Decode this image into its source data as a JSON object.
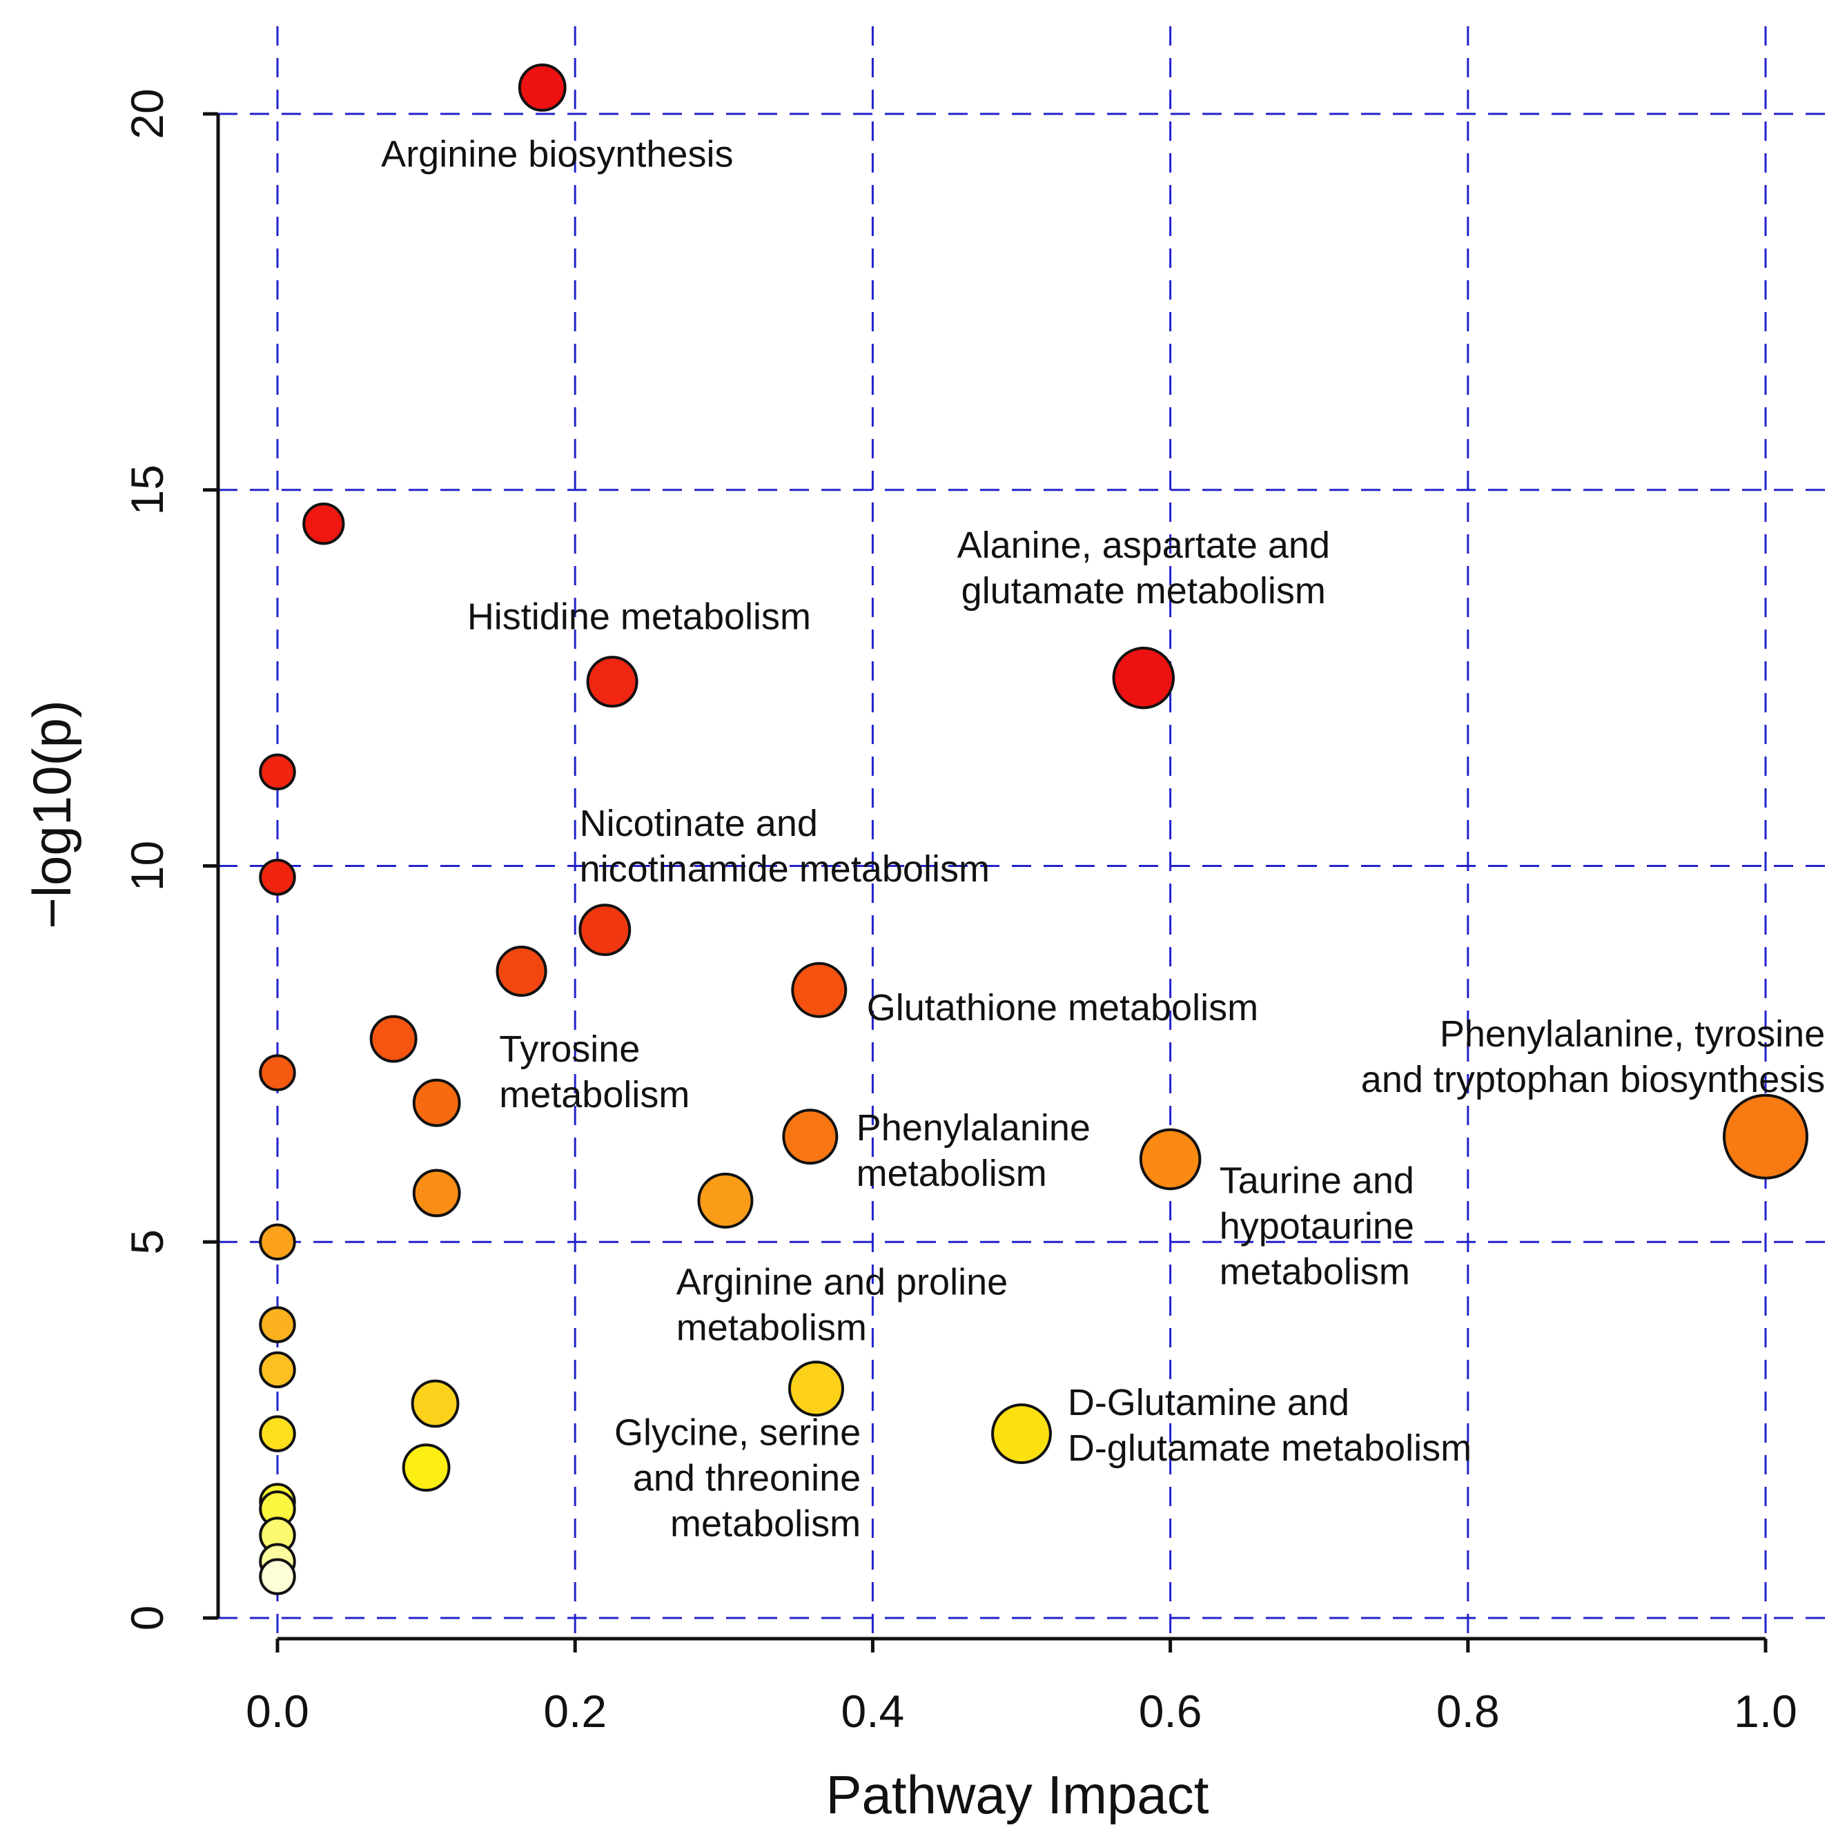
{
  "chart_data": {
    "type": "scatter",
    "title": "",
    "xlabel": "Pathway Impact",
    "ylabel": "−log10(p)",
    "xlim": [
      0,
      1.0
    ],
    "ylim": [
      0,
      20
    ],
    "grid": true,
    "x_ticks": [
      "0.0",
      "0.2",
      "0.4",
      "0.6",
      "0.8",
      "1.0"
    ],
    "x_tick_values": [
      0,
      0.2,
      0.4,
      0.6,
      0.8,
      1.0
    ],
    "y_ticks": [
      "0",
      "5",
      "10",
      "15",
      "20"
    ],
    "y_tick_values": [
      0,
      5,
      10,
      15,
      20
    ],
    "points": [
      {
        "x": 0.178,
        "y": 20.35,
        "size": 0.37,
        "color": "#ee1111"
      },
      {
        "x": 0.031,
        "y": 14.55,
        "size": 0.27,
        "color": "#ee1810"
      },
      {
        "x": 0.225,
        "y": 12.45,
        "size": 0.43,
        "color": "#f02612"
      },
      {
        "x": 0.582,
        "y": 12.5,
        "size": 0.61,
        "color": "#ee1111"
      },
      {
        "x": 0.0,
        "y": 11.25,
        "size": 0.18,
        "color": "#f0240f"
      },
      {
        "x": 0.0,
        "y": 9.85,
        "size": 0.18,
        "color": "#f0240f"
      },
      {
        "x": 0.22,
        "y": 9.15,
        "size": 0.44,
        "color": "#f0370f"
      },
      {
        "x": 0.164,
        "y": 8.6,
        "size": 0.42,
        "color": "#f2480f"
      },
      {
        "x": 0.364,
        "y": 8.35,
        "size": 0.5,
        "color": "#f5510f"
      },
      {
        "x": 0.078,
        "y": 7.7,
        "size": 0.36,
        "color": "#f55510"
      },
      {
        "x": 0.0,
        "y": 7.25,
        "size": 0.18,
        "color": "#f55a10"
      },
      {
        "x": 0.107,
        "y": 6.85,
        "size": 0.37,
        "color": "#f76a10"
      },
      {
        "x": 0.358,
        "y": 6.4,
        "size": 0.5,
        "color": "#f77612"
      },
      {
        "x": 1.0,
        "y": 6.4,
        "size": 1.0,
        "color": "#f77a12"
      },
      {
        "x": 0.6,
        "y": 6.1,
        "size": 0.6,
        "color": "#fa8a12"
      },
      {
        "x": 0.107,
        "y": 5.65,
        "size": 0.37,
        "color": "#fa8e14"
      },
      {
        "x": 0.301,
        "y": 5.55,
        "size": 0.5,
        "color": "#fb9c18"
      },
      {
        "x": 0.0,
        "y": 5.0,
        "size": 0.18,
        "color": "#fba21a"
      },
      {
        "x": 0.0,
        "y": 3.9,
        "size": 0.18,
        "color": "#fcb21e"
      },
      {
        "x": 0.0,
        "y": 3.3,
        "size": 0.18,
        "color": "#fcc022"
      },
      {
        "x": 0.106,
        "y": 2.85,
        "size": 0.37,
        "color": "#fdd21c"
      },
      {
        "x": 0.362,
        "y": 3.05,
        "size": 0.5,
        "color": "#fdd01a"
      },
      {
        "x": 0.0,
        "y": 2.45,
        "size": 0.18,
        "color": "#fde01c"
      },
      {
        "x": 0.5,
        "y": 2.45,
        "size": 0.58,
        "color": "#fde010"
      },
      {
        "x": 0.1,
        "y": 2.0,
        "size": 0.37,
        "color": "#fcee12"
      },
      {
        "x": 0.0,
        "y": 1.55,
        "size": 0.18,
        "color": "#fbf530"
      },
      {
        "x": 0.0,
        "y": 1.45,
        "size": 0.18,
        "color": "#fbf640"
      },
      {
        "x": 0.0,
        "y": 1.1,
        "size": 0.18,
        "color": "#fcf870"
      },
      {
        "x": 0.0,
        "y": 0.75,
        "size": 0.18,
        "color": "#fdfba0"
      },
      {
        "x": 0.0,
        "y": 0.55,
        "size": 0.18,
        "color": "#fefed8"
      }
    ],
    "annotations": [
      {
        "lines": [
          "Arginine biosynthesis"
        ],
        "x": 0.188,
        "y": 19.3,
        "anchor": "middle"
      },
      {
        "lines": [
          "Histidine metabolism"
        ],
        "x": 0.243,
        "y": 13.15,
        "anchor": "middle"
      },
      {
        "lines": [
          "Alanine, aspartate and",
          "glutamate metabolism"
        ],
        "x": 0.582,
        "y": 14.1,
        "anchor": "middle"
      },
      {
        "lines": [
          "Nicotinate and",
          "nicotinamide metabolism"
        ],
        "x": 0.203,
        "y": 10.4,
        "anchor": "start"
      },
      {
        "lines": [
          "Glutathione metabolism"
        ],
        "x": 0.396,
        "y": 7.95,
        "anchor": "start"
      },
      {
        "lines": [
          "Tyrosine",
          "metabolism"
        ],
        "x": 0.149,
        "y": 7.4,
        "anchor": "start"
      },
      {
        "lines": [
          "Phenylalanine, tyrosine",
          "and tryptophan biosynthesis"
        ],
        "x": 1.04,
        "y": 7.6,
        "anchor": "end"
      },
      {
        "lines": [
          "Phenylalanine",
          "metabolism"
        ],
        "x": 0.389,
        "y": 6.35,
        "anchor": "start"
      },
      {
        "lines": [
          "Taurine and",
          "hypotaurine",
          "metabolism"
        ],
        "x": 0.633,
        "y": 5.65,
        "anchor": "start"
      },
      {
        "lines": [
          "Arginine and proline",
          "metabolism"
        ],
        "x": 0.268,
        "y": 4.3,
        "anchor": "start"
      },
      {
        "lines": [
          "D-Glutamine and",
          "D-glutamate metabolism"
        ],
        "x": 0.531,
        "y": 2.7,
        "anchor": "start"
      },
      {
        "lines": [
          "Glycine, serine",
          "and threonine",
          "metabolism"
        ],
        "x": 0.392,
        "y": 2.3,
        "anchor": "end"
      }
    ],
    "point_outline_color": "#111111",
    "grid_color": "#2222cc"
  }
}
